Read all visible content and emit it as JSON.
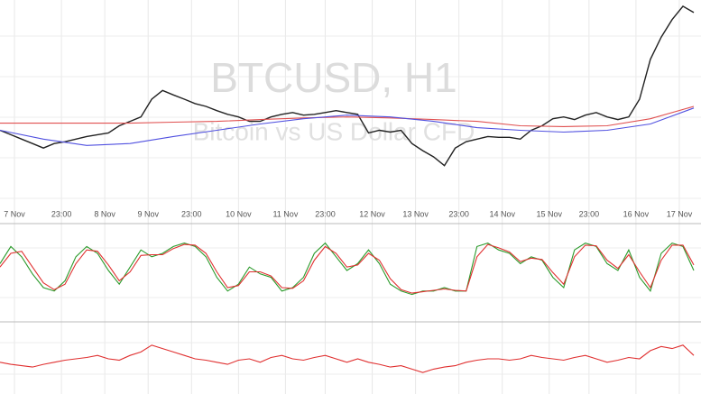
{
  "chart_data": [
    {
      "type": "line",
      "title": "BTCUSD, H1",
      "subtitle": "Bitcoin vs US Dollar CFD",
      "xlim": [
        0,
        194
      ],
      "ylim": [
        0,
        100
      ],
      "xticks": [
        {
          "value": 4,
          "label": "7 Nov"
        },
        {
          "value": 17,
          "label": "23:00"
        },
        {
          "value": 29,
          "label": "8 Nov"
        },
        {
          "value": 41,
          "label": "9 Nov"
        },
        {
          "value": 53,
          "label": "23:00"
        },
        {
          "value": 66,
          "label": "10 Nov"
        },
        {
          "value": 79,
          "label": "11 Nov"
        },
        {
          "value": 90,
          "label": "23:00"
        },
        {
          "value": 103,
          "label": "12 Nov"
        },
        {
          "value": 115,
          "label": "13 Nov"
        },
        {
          "value": 127,
          "label": "23:00"
        },
        {
          "value": 139,
          "label": "14 Nov"
        },
        {
          "value": 152,
          "label": "15 Nov"
        },
        {
          "value": 163,
          "label": "23:00"
        },
        {
          "value": 176,
          "label": "16 Nov"
        },
        {
          "value": 188,
          "label": "17 Nov"
        }
      ],
      "series": [
        {
          "color": "#222222",
          "x": [
            0,
            3,
            6,
            9,
            12,
            15,
            18,
            21,
            24,
            27,
            30,
            33,
            36,
            39,
            42,
            45,
            48,
            51,
            54,
            57,
            60,
            63,
            66,
            69,
            72,
            75,
            78,
            81,
            84,
            87,
            90,
            93,
            96,
            99,
            102,
            105,
            108,
            111,
            114,
            117,
            120,
            123,
            126,
            129,
            132,
            135,
            138,
            141,
            144,
            147,
            150,
            153,
            156,
            159,
            162,
            165,
            168,
            171,
            174,
            177,
            180,
            183,
            186,
            189,
            192
          ],
          "values": [
            36.4,
            34.2,
            32.0,
            29.8,
            27.6,
            29.8,
            30.7,
            32.0,
            33.3,
            34.2,
            35.1,
            38.6,
            40.8,
            43.0,
            51.8,
            56.1,
            53.9,
            51.8,
            49.6,
            48.2,
            46.1,
            44.3,
            43.0,
            40.8,
            40.8,
            43.0,
            44.3,
            45.2,
            43.9,
            44.3,
            45.2,
            46.1,
            45.2,
            44.3,
            35.1,
            36.4,
            35.5,
            36.4,
            29.8,
            26.3,
            23.2,
            18.9,
            27.6,
            30.7,
            32.0,
            33.3,
            32.9,
            32.9,
            32.0,
            36.4,
            38.6,
            42.1,
            43.0,
            41.7,
            43.9,
            45.2,
            43.0,
            41.7,
            43.0,
            51.8,
            71.5,
            82.5,
            91.2,
            97.8,
            94.7
          ]
        },
        {
          "color": "#e05050",
          "x": [
            0,
            12,
            24,
            36,
            48,
            60,
            72,
            84,
            96,
            108,
            120,
            132,
            144,
            156,
            168,
            180,
            192
          ],
          "values": [
            39.9,
            39.9,
            39.9,
            39.9,
            40.4,
            40.8,
            41.7,
            42.5,
            43.0,
            42.5,
            41.7,
            40.8,
            38.6,
            38.2,
            38.6,
            42.1,
            48.2
          ]
        },
        {
          "color": "#5050e0",
          "x": [
            0,
            12,
            24,
            36,
            48,
            60,
            72,
            84,
            96,
            108,
            120,
            132,
            144,
            156,
            168,
            180,
            192
          ],
          "values": [
            36.4,
            32.0,
            28.9,
            29.8,
            33.3,
            36.4,
            39.5,
            42.1,
            43.9,
            43.0,
            40.8,
            37.7,
            36.4,
            35.5,
            36.4,
            39.5,
            47.4
          ]
        }
      ]
    },
    {
      "type": "line",
      "xlim": [
        0,
        194
      ],
      "ylim": [
        0,
        100
      ],
      "series": [
        {
          "color": "#2a9a2a",
          "x": [
            0,
            3,
            6,
            9,
            12,
            15,
            18,
            21,
            24,
            27,
            30,
            33,
            36,
            39,
            42,
            45,
            48,
            51,
            54,
            57,
            60,
            63,
            66,
            69,
            72,
            75,
            78,
            81,
            84,
            87,
            90,
            93,
            96,
            99,
            102,
            105,
            108,
            111,
            114,
            117,
            120,
            123,
            126,
            129,
            132,
            135,
            138,
            141,
            144,
            147,
            150,
            153,
            156,
            159,
            162,
            165,
            168,
            171,
            174,
            177,
            180,
            183,
            186,
            189,
            192
          ],
          "values": [
            60,
            85,
            70,
            45,
            25,
            20,
            35,
            70,
            85,
            75,
            50,
            30,
            55,
            80,
            70,
            75,
            85,
            90,
            85,
            70,
            40,
            20,
            30,
            55,
            45,
            40,
            20,
            25,
            40,
            75,
            90,
            70,
            50,
            60,
            80,
            60,
            30,
            20,
            15,
            20,
            20,
            25,
            20,
            20,
            85,
            90,
            80,
            75,
            60,
            70,
            65,
            40,
            25,
            80,
            90,
            85,
            60,
            50,
            80,
            40,
            20,
            75,
            90,
            85,
            50
          ]
        },
        {
          "color": "#e03030",
          "x": [
            0,
            3,
            6,
            9,
            12,
            15,
            18,
            21,
            24,
            27,
            30,
            33,
            36,
            39,
            42,
            45,
            48,
            51,
            54,
            57,
            60,
            63,
            66,
            69,
            72,
            75,
            78,
            81,
            84,
            87,
            90,
            93,
            96,
            99,
            102,
            105,
            108,
            111,
            114,
            117,
            120,
            123,
            126,
            129,
            132,
            135,
            138,
            141,
            144,
            147,
            150,
            153,
            156,
            159,
            162,
            165,
            168,
            171,
            174,
            177,
            180,
            183,
            186,
            189,
            192
          ],
          "values": [
            55,
            75,
            78,
            55,
            32,
            22,
            30,
            60,
            80,
            78,
            58,
            35,
            48,
            72,
            73,
            73,
            82,
            88,
            87,
            75,
            48,
            25,
            28,
            48,
            48,
            42,
            25,
            24,
            35,
            65,
            85,
            75,
            55,
            58,
            75,
            65,
            38,
            22,
            17,
            19,
            21,
            23,
            21,
            20,
            70,
            88,
            83,
            77,
            63,
            68,
            66,
            47,
            30,
            70,
            87,
            86,
            65,
            53,
            73,
            48,
            25,
            65,
            87,
            87,
            58
          ]
        }
      ]
    },
    {
      "type": "line",
      "xlim": [
        0,
        194
      ],
      "ylim": [
        0,
        100
      ],
      "series": [
        {
          "color": "#e03030",
          "x": [
            0,
            3,
            6,
            9,
            12,
            15,
            18,
            21,
            24,
            27,
            30,
            33,
            36,
            39,
            42,
            45,
            48,
            51,
            54,
            57,
            60,
            63,
            66,
            69,
            72,
            75,
            78,
            81,
            84,
            87,
            90,
            93,
            96,
            99,
            102,
            105,
            108,
            111,
            114,
            117,
            120,
            123,
            126,
            129,
            132,
            135,
            138,
            141,
            144,
            147,
            150,
            153,
            156,
            159,
            162,
            165,
            168,
            171,
            174,
            177,
            180,
            183,
            186,
            189,
            192
          ],
          "values": [
            45,
            42,
            40,
            38,
            42,
            45,
            48,
            50,
            52,
            55,
            50,
            48,
            55,
            60,
            70,
            65,
            60,
            55,
            50,
            48,
            45,
            42,
            48,
            50,
            45,
            52,
            55,
            50,
            48,
            52,
            55,
            50,
            45,
            50,
            45,
            42,
            38,
            40,
            35,
            30,
            35,
            38,
            40,
            45,
            48,
            50,
            50,
            48,
            50,
            55,
            52,
            50,
            48,
            52,
            55,
            50,
            45,
            48,
            52,
            50,
            62,
            68,
            65,
            70,
            55
          ]
        }
      ]
    }
  ]
}
